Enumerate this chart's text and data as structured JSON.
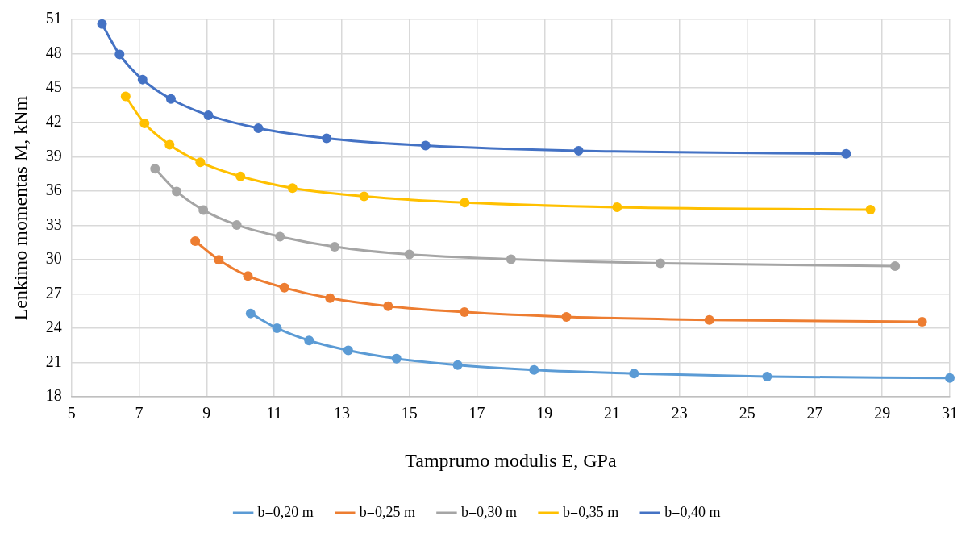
{
  "chart_data": {
    "type": "line",
    "xlabel": "Tamprumo modulis E, GPa",
    "ylabel": "Lenkimo momentas M, kNm",
    "xlim": [
      5,
      31
    ],
    "xticks": [
      5,
      7,
      9,
      11,
      13,
      15,
      17,
      19,
      21,
      23,
      25,
      27,
      29,
      31
    ],
    "ylim": [
      18,
      51
    ],
    "yticks": [
      18,
      21,
      24,
      27,
      30,
      33,
      36,
      39,
      42,
      45,
      48,
      51
    ],
    "grid": true,
    "legend": "bottom",
    "marker": "circle",
    "line_style": "solid",
    "series": [
      {
        "name": "b=0,20 m",
        "color": "#5b9bd5",
        "x": [
          10.3,
          11.08,
          12.03,
          13.19,
          14.62,
          16.43,
          18.69,
          21.65,
          25.59,
          31.0
        ],
        "values": [
          25.3,
          24.01,
          22.93,
          22.07,
          21.35,
          20.78,
          20.36,
          20.04,
          19.77,
          19.66
        ]
      },
      {
        "name": "b=0,25 m",
        "color": "#ed7d31",
        "x": [
          8.66,
          9.36,
          10.22,
          11.3,
          12.65,
          14.37,
          16.63,
          19.65,
          23.88,
          30.18
        ],
        "values": [
          31.62,
          29.98,
          28.57,
          27.54,
          26.63,
          25.93,
          25.41,
          25.0,
          24.73,
          24.57
        ]
      },
      {
        "name": "b=0,30 m",
        "color": "#a5a5a5",
        "x": [
          7.47,
          8.11,
          8.9,
          9.89,
          11.17,
          12.79,
          15.0,
          18.01,
          22.43,
          29.38
        ],
        "values": [
          37.94,
          35.96,
          34.33,
          33.03,
          32.01,
          31.13,
          30.45,
          30.03,
          29.68,
          29.44
        ]
      },
      {
        "name": "b=0,35 m",
        "color": "#ffc000",
        "x": [
          6.6,
          7.16,
          7.9,
          8.81,
          10.0,
          11.54,
          13.66,
          16.64,
          21.15,
          28.65
        ],
        "values": [
          44.27,
          41.9,
          40.04,
          38.51,
          37.27,
          36.25,
          35.53,
          34.98,
          34.58,
          34.37
        ]
      },
      {
        "name": "b=0,40 m",
        "color": "#4472c4",
        "x": [
          5.9,
          6.42,
          7.1,
          7.94,
          9.05,
          10.53,
          12.55,
          15.48,
          20.01,
          27.93
        ],
        "values": [
          50.59,
          47.93,
          45.74,
          44.04,
          42.62,
          41.49,
          40.61,
          39.97,
          39.52,
          39.25
        ]
      }
    ]
  }
}
